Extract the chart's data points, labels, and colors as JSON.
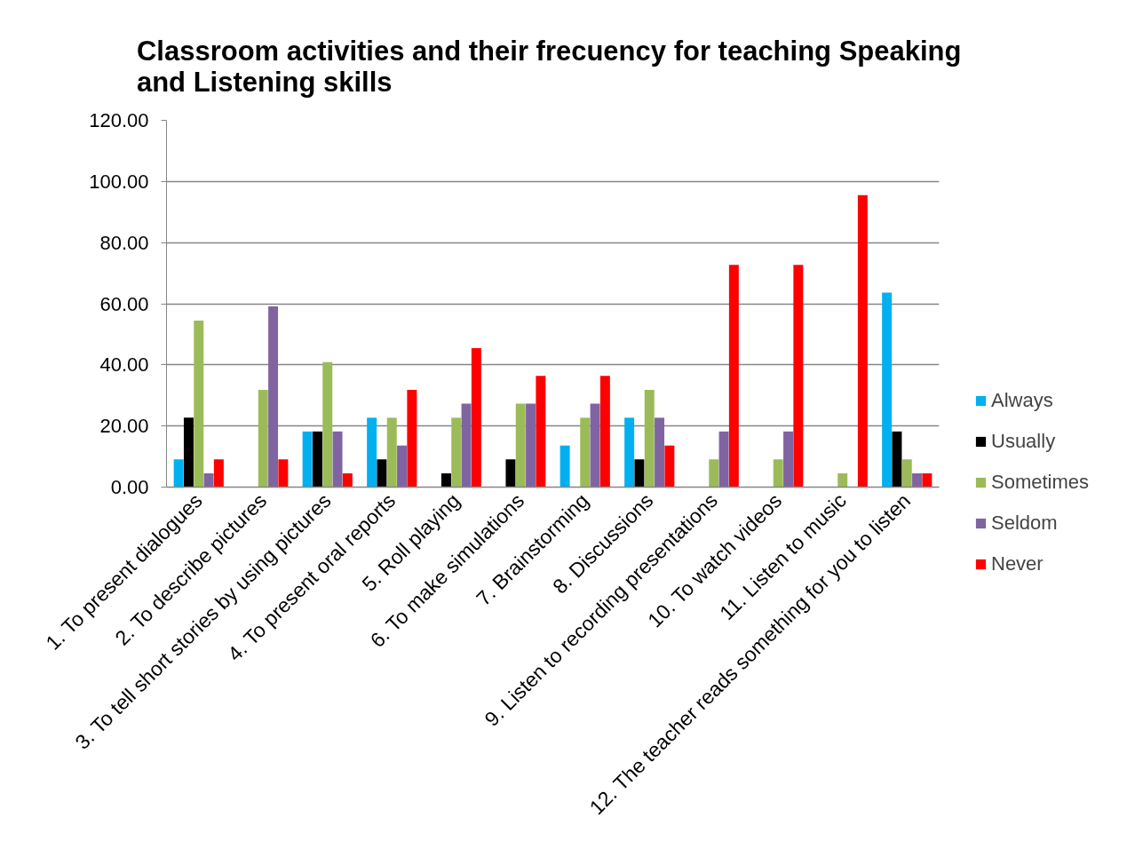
{
  "chart_data": {
    "type": "bar",
    "title": "Classroom activities and their frecuency  for teaching Speaking and Listening skills",
    "categories": [
      "1. To present dialogues",
      "2. To describe pictures",
      "3. To tell short stories by using pictures",
      "4. To present oral reports",
      "5. Roll playing",
      "6. To make simulations",
      "7. Brainstorming",
      "8. Discussions",
      "9. Listen to recording presentations",
      "10. To watch videos",
      "11. Listen to music",
      "12. The teacher reads something for you to listen"
    ],
    "series": [
      {
        "name": "Always",
        "color": "#00b0f0",
        "values": [
          9.1,
          0,
          18.2,
          22.7,
          0,
          0,
          13.6,
          22.7,
          0,
          0,
          0,
          63.6
        ]
      },
      {
        "name": "Usually",
        "color": "#000000",
        "values": [
          22.7,
          0,
          18.2,
          9.1,
          4.5,
          9.1,
          0,
          9.1,
          0,
          0,
          0,
          18.2
        ]
      },
      {
        "name": "Sometimes",
        "color": "#9bbb59",
        "values": [
          54.5,
          31.8,
          40.9,
          22.7,
          22.7,
          27.3,
          22.7,
          31.8,
          9.1,
          9.1,
          4.5,
          9.1
        ]
      },
      {
        "name": "Seldom",
        "color": "#8064a2",
        "values": [
          4.5,
          59.1,
          18.2,
          13.6,
          27.3,
          27.3,
          27.3,
          22.7,
          18.2,
          18.2,
          0,
          4.5
        ]
      },
      {
        "name": "Never",
        "color": "#ff0000",
        "values": [
          9.1,
          9.1,
          4.5,
          31.8,
          45.5,
          36.4,
          36.4,
          13.6,
          72.7,
          72.7,
          95.5,
          4.5
        ]
      }
    ],
    "ylim": [
      0,
      120
    ],
    "yticks": [
      {
        "value": 0,
        "label": "0.00"
      },
      {
        "value": 20,
        "label": "20.00"
      },
      {
        "value": 40,
        "label": "40.00"
      },
      {
        "value": 60,
        "label": "60.00"
      },
      {
        "value": 80,
        "label": "80.00"
      },
      {
        "value": 100,
        "label": "100.00"
      },
      {
        "value": 120,
        "label": "120.00"
      }
    ],
    "grid": "y",
    "legend": "right"
  }
}
